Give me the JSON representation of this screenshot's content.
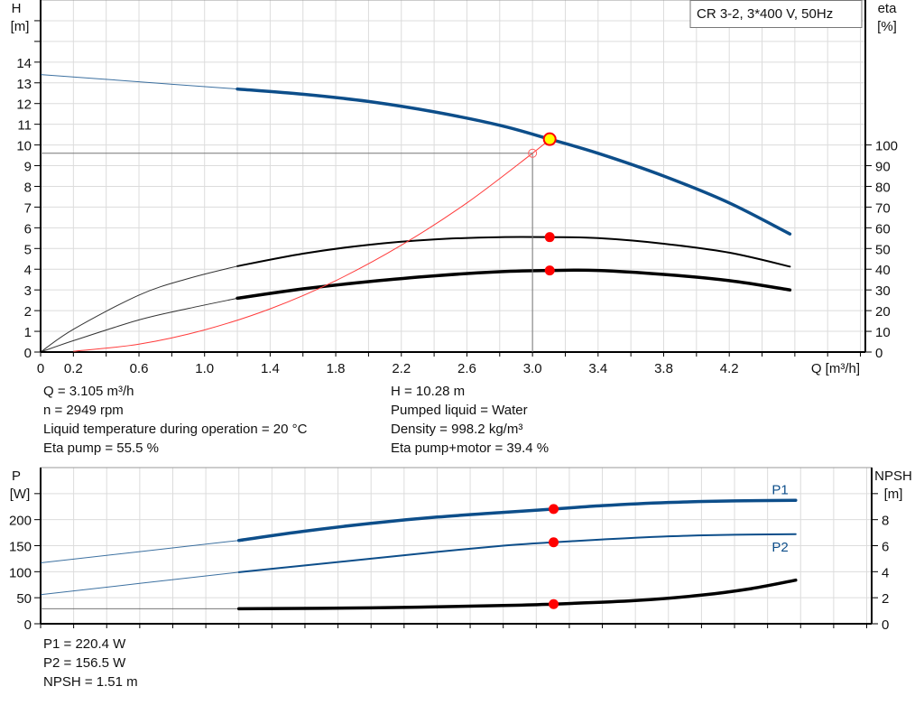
{
  "legend_box": "CR 3-2, 3*400 V, 50Hz",
  "colors": {
    "head": "#0d4e8a",
    "efficiency": "#000000",
    "system": "#ff3b3b",
    "power": "#0d4e8a",
    "npsh": "#000000",
    "marker": "#ff0000",
    "duty_marker_fill": "#ffff00",
    "grid": "#dcdcdc"
  },
  "operating_point": {
    "q": 3.105,
    "h": 10.28,
    "eta_pump": 55.5,
    "eta_total": 39.4,
    "p1": 220.4,
    "p2": 156.5,
    "npsh": 1.51,
    "guide_q": 3.0,
    "guide_h": 9.6
  },
  "info_top": {
    "left": [
      "Q = 3.105 m³/h",
      "n = 2949 rpm",
      "Liquid temperature during operation = 20 °C",
      "Eta pump = 55.5 %"
    ],
    "right": [
      "H = 10.28 m",
      "Pumped liquid = Water",
      "Density = 998.2 kg/m³",
      "Eta pump+motor = 39.4 %"
    ]
  },
  "info_bottom": [
    "P1 = 220.4 W",
    "P2 = 156.5 W",
    "NPSH = 1.51 m"
  ],
  "chart_data": [
    {
      "type": "line",
      "ylabel": "H",
      "yunit": "[m]",
      "y2label": "eta",
      "y2unit": "[%]",
      "xlabel": "Q [m³/h]",
      "xlim": [
        0,
        5.03
      ],
      "ylim": [
        0,
        17
      ],
      "y2lim": [
        0,
        170
      ],
      "grid": true,
      "xticks": [
        "0",
        "0.2",
        "0.6",
        "1.0",
        "1.4",
        "1.8",
        "2.2",
        "2.6",
        "3.0",
        "3.4",
        "3.8",
        "4.2"
      ],
      "yticks": [
        "0",
        "1",
        "2",
        "3",
        "4",
        "5",
        "6",
        "7",
        "8",
        "9",
        "10",
        "11",
        "12",
        "13",
        "14"
      ],
      "y2ticks": [
        "0",
        "10",
        "20",
        "30",
        "40",
        "50",
        "60",
        "70",
        "80",
        "90",
        "100"
      ],
      "series": [
        {
          "axis": "left",
          "kind": "head",
          "width": 3.5,
          "color": "#0d4e8a",
          "x": [
            0,
            0.6,
            1.2,
            1.6,
            2.0,
            2.4,
            2.8,
            3.105,
            3.4,
            3.8,
            4.2,
            4.57
          ],
          "y": [
            13.4,
            13.05,
            12.7,
            12.45,
            12.1,
            11.6,
            10.95,
            10.28,
            9.6,
            8.5,
            7.2,
            5.7
          ]
        },
        {
          "axis": "right",
          "kind": "eta-pump",
          "width": 2,
          "color": "#000000",
          "x": [
            0,
            0.2,
            0.6,
            0.9,
            1.2,
            1.6,
            2.0,
            2.4,
            2.8,
            3.105,
            3.4,
            3.8,
            4.2,
            4.57
          ],
          "y": [
            0,
            11,
            27.5,
            35.5,
            41.5,
            47.5,
            51.8,
            54.4,
            55.5,
            55.5,
            55,
            52.3,
            48,
            41.3
          ]
        },
        {
          "axis": "right",
          "kind": "eta-pump-motor",
          "width": 3.5,
          "color": "#000000",
          "x": [
            0,
            0.2,
            0.6,
            0.9,
            1.2,
            1.6,
            2.0,
            2.4,
            2.8,
            3.105,
            3.4,
            3.8,
            4.2,
            4.57
          ],
          "y": [
            0,
            5.5,
            15.5,
            21,
            26,
            30.5,
            34,
            36.8,
            38.8,
            39.4,
            39.4,
            37.5,
            34.5,
            30
          ]
        },
        {
          "axis": "left",
          "kind": "system",
          "width": 1,
          "color": "#ff3b3b",
          "full_thin": true,
          "x": [
            0.2,
            0.6,
            1.0,
            1.4,
            1.8,
            2.2,
            2.6,
            3.0,
            3.105
          ],
          "y": [
            0.04,
            0.38,
            1.07,
            2.09,
            3.45,
            5.16,
            7.2,
            9.6,
            10.28
          ]
        }
      ]
    },
    {
      "type": "line",
      "ylabel": "P",
      "yunit": "[W]",
      "y2label": "NPSH",
      "y2unit": "[m]",
      "xlim": [
        0,
        5.03
      ],
      "ylim": [
        0,
        300
      ],
      "y2lim": [
        0,
        12
      ],
      "grid": true,
      "yticks": [
        "0",
        "50",
        "100",
        "150",
        "200"
      ],
      "y2ticks": [
        "0",
        "2",
        "4",
        "6",
        "8"
      ],
      "series": [
        {
          "name": "P1",
          "axis": "left",
          "width": 3.5,
          "color": "#0d4e8a",
          "x": [
            0,
            1.2,
            1.6,
            2.0,
            2.4,
            2.8,
            3.105,
            3.4,
            3.8,
            4.2,
            4.57
          ],
          "y": [
            117,
            160,
            178,
            193,
            205,
            214,
            220.4,
            227,
            233,
            236,
            237
          ]
        },
        {
          "name": "P2",
          "axis": "left",
          "width": 2,
          "color": "#0d4e8a",
          "x": [
            0,
            1.2,
            1.6,
            2.0,
            2.4,
            2.8,
            3.105,
            3.4,
            3.8,
            4.2,
            4.57
          ],
          "y": [
            56,
            99,
            112,
            125,
            138,
            150,
            156.5,
            162,
            168,
            171,
            172
          ]
        },
        {
          "axis": "right",
          "kind": "npsh",
          "width": 3.5,
          "color": "#000000",
          "thin_color": "#555555",
          "x": [
            0,
            1.2,
            2.0,
            2.8,
            3.105,
            3.6,
            4.0,
            4.3,
            4.57
          ],
          "y": [
            1.15,
            1.15,
            1.22,
            1.4,
            1.51,
            1.78,
            2.2,
            2.7,
            3.35
          ]
        }
      ]
    }
  ]
}
